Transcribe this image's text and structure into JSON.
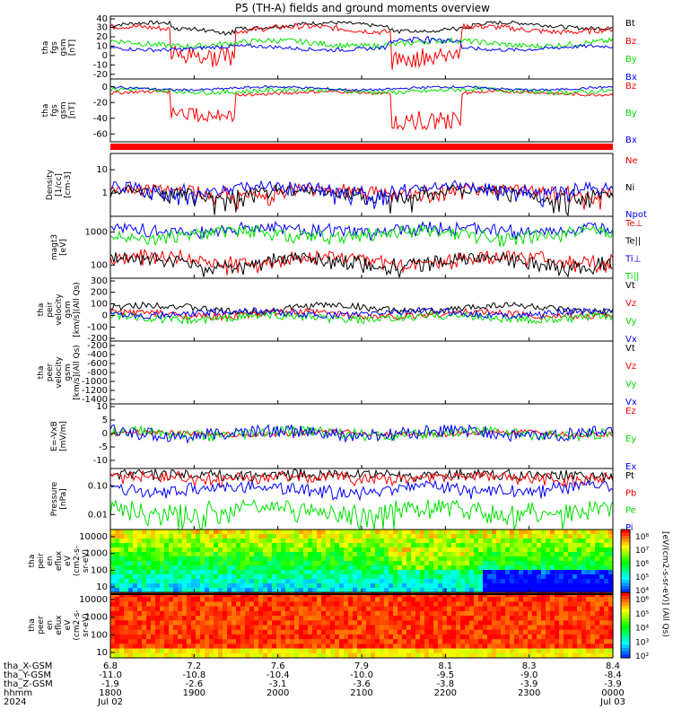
{
  "title": "P5 (TH-A) fields and ground moments overview",
  "colors": {
    "black": "#000000",
    "red": "#ff0000",
    "green": "#00e000",
    "blue": "#0000ff"
  },
  "chart_data": [
    {
      "type": "line",
      "ylabel": [
        "tha",
        "fgs",
        "gsm",
        "[nT]"
      ],
      "yticks": [
        "40",
        "30",
        "20",
        "10",
        "0",
        "-10",
        "-20"
      ],
      "ylim": [
        -25,
        42
      ],
      "series": [
        {
          "name": "Bt",
          "color": "black",
          "base": 32,
          "amp": 3,
          "noise": 4,
          "dips": [
            [
              0.12,
              0.25,
              6
            ],
            [
              0.55,
              0.72,
              4
            ]
          ]
        },
        {
          "name": "Bz",
          "color": "red",
          "base": 28,
          "amp": 3,
          "noise": 6,
          "dips": [
            [
              0.12,
              0.25,
              35
            ],
            [
              0.56,
              0.7,
              40
            ]
          ]
        },
        {
          "name": "By",
          "color": "green",
          "base": 13,
          "amp": 3,
          "noise": 6,
          "dips": []
        },
        {
          "name": "Bx",
          "color": "blue",
          "base": 8,
          "amp": 2,
          "noise": 4,
          "dips": [
            [
              0.55,
              0.7,
              -10
            ]
          ]
        }
      ]
    },
    {
      "type": "line",
      "ylabel": [
        "tha",
        "fgs",
        "gsm",
        "[nT]"
      ],
      "yticks": [
        "0",
        "-20",
        "-40",
        "-60"
      ],
      "ylim": [
        -70,
        10
      ],
      "series": [
        {
          "name": "Bz",
          "color": "red",
          "base": -8,
          "amp": 2,
          "noise": 4,
          "dips": [
            [
              0.12,
              0.25,
              35
            ],
            [
              0.56,
              0.7,
              45
            ]
          ]
        },
        {
          "name": "By",
          "color": "green",
          "base": -5,
          "amp": 2,
          "noise": 6,
          "dips": []
        },
        {
          "name": "Bx",
          "color": "blue",
          "base": -2,
          "amp": 2,
          "noise": 3,
          "dips": []
        }
      ]
    },
    {
      "type": "line",
      "ylabel": [
        "Density",
        "[1/cc]",
        "[cm-3]"
      ],
      "yticks": [
        "10",
        "1"
      ],
      "ylim": [
        0.1,
        50
      ],
      "series": [
        {
          "name": "Ne",
          "color": "red",
          "base": 1.2,
          "amp": 0.4,
          "noise": 1.2,
          "dips": []
        },
        {
          "name": "Ni",
          "color": "black",
          "base": 1.0,
          "amp": 0.4,
          "noise": 1.0,
          "dips": []
        },
        {
          "name": "Npot",
          "color": "blue",
          "base": 1.5,
          "amp": 0.5,
          "noise": 1.5,
          "dips": []
        }
      ]
    },
    {
      "type": "line",
      "ylabel": [
        "magt3",
        "[eV]"
      ],
      "yticks": [
        "1000",
        "100"
      ],
      "ylim": [
        40,
        3000
      ],
      "series": [
        {
          "name": "Te⊥",
          "color": "red",
          "base": 150,
          "amp": 40,
          "noise": 80,
          "dips": []
        },
        {
          "name": "Te||",
          "color": "black",
          "base": 130,
          "amp": 40,
          "noise": 70,
          "dips": []
        },
        {
          "name": "Ti⊥",
          "color": "blue",
          "base": 1200,
          "amp": 200,
          "noise": 300,
          "dips": []
        },
        {
          "name": "Ti||",
          "color": "green",
          "base": 900,
          "amp": 200,
          "noise": 300,
          "dips": []
        }
      ]
    },
    {
      "type": "line",
      "ylabel": [
        "tha",
        "peir",
        "velocity",
        "gsm",
        "[km/s](All Qs)"
      ],
      "yticks": [
        "300",
        "200",
        "100",
        "0",
        "-100",
        "-200"
      ],
      "ylim": [
        -220,
        320
      ],
      "series": [
        {
          "name": "Vt",
          "color": "black",
          "base": 60,
          "amp": 30,
          "noise": 60,
          "dips": []
        },
        {
          "name": "Vz",
          "color": "red",
          "base": 10,
          "amp": 20,
          "noise": 60,
          "dips": []
        },
        {
          "name": "Vy",
          "color": "green",
          "base": -20,
          "amp": 20,
          "noise": 70,
          "dips": []
        },
        {
          "name": "Vx",
          "color": "blue",
          "base": 20,
          "amp": 20,
          "noise": 60,
          "dips": []
        }
      ]
    },
    {
      "type": "line",
      "ylabel": [
        "tha",
        "peer",
        "velocity",
        "gsm",
        "[km/s](All Qs)"
      ],
      "yticks": [
        "-200",
        "-400",
        "-600",
        "-800",
        "-1000",
        "-1200",
        "-1400"
      ],
      "ylim": [
        -1500,
        -100
      ],
      "series": [
        {
          "name": "Vt",
          "color": "black"
        },
        {
          "name": "Vz",
          "color": "red"
        },
        {
          "name": "Vy",
          "color": "green"
        },
        {
          "name": "Vx",
          "color": "blue"
        }
      ]
    },
    {
      "type": "line",
      "ylabel": [
        "E=-VxB",
        "[mV/m]"
      ],
      "yticks": [
        "10",
        "5",
        "0",
        "-5",
        "-10"
      ],
      "ylim": [
        -13,
        11
      ],
      "series": [
        {
          "name": "Ez",
          "color": "red",
          "base": 0,
          "amp": 0.5,
          "noise": 2,
          "dips": []
        },
        {
          "name": "Ey",
          "color": "green",
          "base": 0,
          "amp": 1,
          "noise": 4,
          "dips": []
        },
        {
          "name": "Ex",
          "color": "blue",
          "base": 0,
          "amp": 1,
          "noise": 5,
          "dips": []
        }
      ]
    },
    {
      "type": "line",
      "ylabel": [
        "Pressure",
        "[nPa]"
      ],
      "yticks": [
        "0.10",
        "0.01"
      ],
      "ylim": [
        0.003,
        0.4
      ],
      "series": [
        {
          "name": "Pt",
          "color": "black",
          "base": 0.25,
          "amp": 0.02,
          "noise": 0.05,
          "dips": []
        },
        {
          "name": "Pb",
          "color": "red",
          "base": 0.2,
          "amp": 0.03,
          "noise": 0.08,
          "dips": []
        },
        {
          "name": "Pe",
          "color": "green",
          "base": 0.015,
          "amp": 0.005,
          "noise": 0.02,
          "dips": []
        },
        {
          "name": "Pi",
          "color": "blue",
          "base": 0.08,
          "amp": 0.02,
          "noise": 0.04,
          "dips": []
        }
      ]
    },
    {
      "type": "heatmap",
      "ylabel": [
        "tha",
        "peir",
        "en",
        "eflux",
        "eV",
        "(cm2-s-",
        "sr-eV)"
      ],
      "yticks": [
        "10000",
        "1000",
        "100",
        "10"
      ],
      "colorbar_ticks": [
        "10⁸",
        "10⁷",
        "10⁶",
        "10⁵",
        "10⁴"
      ],
      "colorbar_label": "[eV/(cm2-s-sr-eV)] (All Qs)"
    },
    {
      "type": "heatmap",
      "ylabel": [
        "tha",
        "peer",
        "en",
        "eflux",
        "eV",
        "(cm2-s-",
        "sr-eV)"
      ],
      "yticks": [
        "10000",
        "1000",
        "100",
        "10"
      ],
      "colorbar_ticks": [
        "10⁶",
        "10⁵",
        "10⁴",
        "10³",
        "10²"
      ],
      "colorbar_label": ""
    }
  ],
  "xaxis": {
    "rows": [
      {
        "label": "tha_X-GSM",
        "values": [
          "6.8",
          "7.2",
          "7.6",
          "7.9",
          "8.1",
          "8.3",
          "8.4"
        ]
      },
      {
        "label": "tha_Y-GSM",
        "values": [
          "-11.0",
          "-10.8",
          "-10.4",
          "-10.0",
          "-9.5",
          "-9.0",
          "-8.4"
        ]
      },
      {
        "label": "tha_Z-GSM",
        "values": [
          "-1.9",
          "-2.6",
          "-3.1",
          "-3.6",
          "-3.8",
          "-3.9",
          "-3.9"
        ]
      },
      {
        "label": "hhmm",
        "values": [
          "1800",
          "1900",
          "2000",
          "2100",
          "2200",
          "2300",
          "0000"
        ]
      },
      {
        "label": "2024",
        "values": [
          "Jul 02",
          "",
          "",
          "",
          "",
          "",
          "Jul 03"
        ]
      }
    ]
  }
}
